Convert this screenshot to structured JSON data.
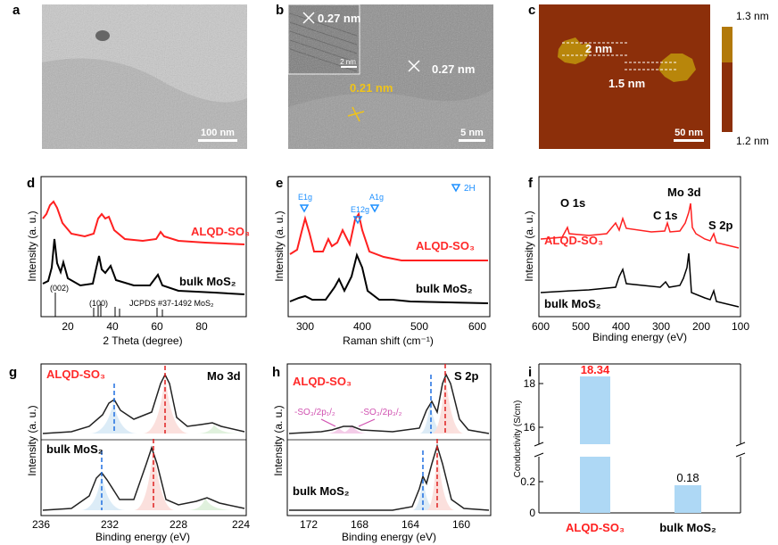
{
  "panels": {
    "a": {
      "label": "a",
      "scale": "100 nm"
    },
    "b": {
      "label": "b",
      "scale": "5 nm",
      "inset_scale": "2 nm",
      "d1": "0.27 nm",
      "d2": "0.27 nm",
      "d3": "0.21 nm"
    },
    "c": {
      "label": "c",
      "scale": "50 nm",
      "h1": "2 nm",
      "h2": "1.5 nm",
      "cbar_top": "1.3 nm",
      "cbar_bottom": "1.2 nm"
    },
    "d": {
      "label": "d",
      "ylabel": "Intensity (a. u.)",
      "xlabel": "2 Theta (degree)",
      "series1": "ALQD-SO₃",
      "series2": "bulk MoS₂",
      "peak002": "(002)",
      "peak100": "(100)",
      "ref": "JCPDS #37-1492 MoS₂",
      "ticks": [
        "20",
        "40",
        "60",
        "80"
      ]
    },
    "e": {
      "label": "e",
      "ylabel": "Intensity (a. u.)",
      "xlabel": "Raman shift (cm⁻¹)",
      "series1": "ALQD-SO₃",
      "series2": "bulk MoS₂",
      "legend": "2H",
      "peak1": "E1g",
      "peak2": "E12g",
      "peak3": "A1g",
      "ticks": [
        "300",
        "400",
        "500",
        "600"
      ]
    },
    "f": {
      "label": "f",
      "ylabel": "Intensity (a. u.)",
      "xlabel": "Binding energy (eV)",
      "series1": "ALQD-SO₃",
      "series2": "bulk MoS₂",
      "o1s": "O 1s",
      "mo3d": "Mo 3d",
      "c1s": "C 1s",
      "s2p": "S 2p",
      "ticks": [
        "600",
        "500",
        "400",
        "300",
        "200",
        "100"
      ]
    },
    "g": {
      "label": "g",
      "ylabel": "Intensity (a. u.)",
      "xlabel": "Binding energy (eV)",
      "series1": "ALQD-SO₃",
      "series2": "bulk MoS₂",
      "title": "Mo 3d",
      "ticks": [
        "236",
        "232",
        "228",
        "224"
      ]
    },
    "h": {
      "label": "h",
      "ylabel": "Intensity (a. u.)",
      "xlabel": "Binding energy (eV)",
      "series1": "ALQD-SO₃",
      "series2": "bulk MoS₂",
      "title": "S 2p",
      "ann1": "-SO₃/2p₁/₂",
      "ann2": "-SO₃/2p₃/₂",
      "ticks": [
        "172",
        "168",
        "164",
        "160"
      ]
    },
    "i": {
      "label": "i",
      "ylabel": "Conductivity (S/cm)",
      "bar1_label": "ALQD-SO₃",
      "bar2_label": "bulk MoS₂",
      "bar1_value_text": "18.34",
      "bar2_value_text": "0.18",
      "ticks_upper": [
        "18",
        "16"
      ],
      "ticks_lower": [
        "0.2",
        "0"
      ]
    }
  },
  "chart_data": [
    {
      "type": "line",
      "panel": "d",
      "xlabel": "2 Theta (degree)",
      "ylabel": "Intensity (a. u.)",
      "xlim": [
        8,
        90
      ],
      "series": [
        {
          "name": "ALQD-SO₃",
          "x": [
            8,
            14,
            20,
            33,
            36,
            40,
            58,
            90
          ],
          "y": [
            0.7,
            0.95,
            0.75,
            0.85,
            0.85,
            0.75,
            0.72,
            0.68
          ]
        },
        {
          "name": "bulk MoS₂",
          "x": [
            8,
            14,
            17,
            33,
            40,
            58,
            90
          ],
          "y": [
            0.3,
            0.85,
            0.45,
            0.7,
            0.45,
            0.35,
            0.27
          ]
        }
      ]
    },
    {
      "type": "line",
      "panel": "e",
      "xlabel": "Raman shift (cm⁻¹)",
      "ylabel": "Intensity (a. u.)",
      "xlim": [
        250,
        600
      ],
      "series": [
        {
          "name": "ALQD-SO₃",
          "x": [
            250,
            285,
            330,
            375,
            405,
            450,
            600
          ],
          "y": [
            0.5,
            0.95,
            0.7,
            0.75,
            0.95,
            0.5,
            0.5
          ]
        },
        {
          "name": "bulk MoS₂",
          "x": [
            250,
            285,
            375,
            405,
            450,
            600
          ],
          "y": [
            0.05,
            0.1,
            0.3,
            0.65,
            0.1,
            0.05
          ]
        }
      ]
    },
    {
      "type": "line",
      "panel": "f",
      "xlabel": "Binding energy (eV)",
      "ylabel": "Intensity (a. u.)",
      "xlim": [
        600,
        100
      ],
      "series": [
        {
          "name": "ALQD-SO₃",
          "x": [
            600,
            532,
            400,
            285,
            230,
            162,
            100
          ],
          "y": [
            0.5,
            0.75,
            0.65,
            0.65,
            0.95,
            0.55,
            0.5
          ]
        },
        {
          "name": "bulk MoS₂",
          "x": [
            600,
            400,
            230,
            162,
            100
          ],
          "y": [
            0.1,
            0.3,
            0.75,
            0.25,
            0.1
          ]
        }
      ]
    },
    {
      "type": "line",
      "panel": "g",
      "xlabel": "Binding energy (eV)",
      "ylabel": "Intensity (a. u.)",
      "xlim": [
        236,
        224
      ],
      "series": [
        {
          "name": "ALQD-SO₃",
          "x": [
            236,
            232,
            228.5,
            225.5,
            224
          ],
          "y": [
            0.1,
            0.65,
            0.95,
            0.25,
            0.1
          ]
        },
        {
          "name": "bulk MoS₂",
          "x": [
            236,
            232.3,
            229.1,
            226.5,
            224
          ],
          "y": [
            0.1,
            0.7,
            0.95,
            0.25,
            0.1
          ]
        }
      ]
    },
    {
      "type": "line",
      "panel": "h",
      "xlabel": "Binding energy (eV)",
      "ylabel": "Intensity (a. u.)",
      "xlim": [
        174,
        158
      ],
      "series": [
        {
          "name": "ALQD-SO₃",
          "x": [
            174,
            169,
            163.2,
            161.8,
            158
          ],
          "y": [
            0.05,
            0.12,
            0.6,
            0.95,
            0.05
          ]
        },
        {
          "name": "bulk MoS₂",
          "x": [
            174,
            163.5,
            162.2,
            158
          ],
          "y": [
            0.05,
            0.6,
            0.95,
            0.05
          ]
        }
      ]
    },
    {
      "type": "bar",
      "panel": "i",
      "ylabel": "Conductivity (S/cm)",
      "categories": [
        "ALQD-SO₃",
        "bulk MoS₂"
      ],
      "values": [
        18.34,
        0.18
      ],
      "colors": [
        "#aed8f5",
        "#aed8f5"
      ]
    }
  ]
}
